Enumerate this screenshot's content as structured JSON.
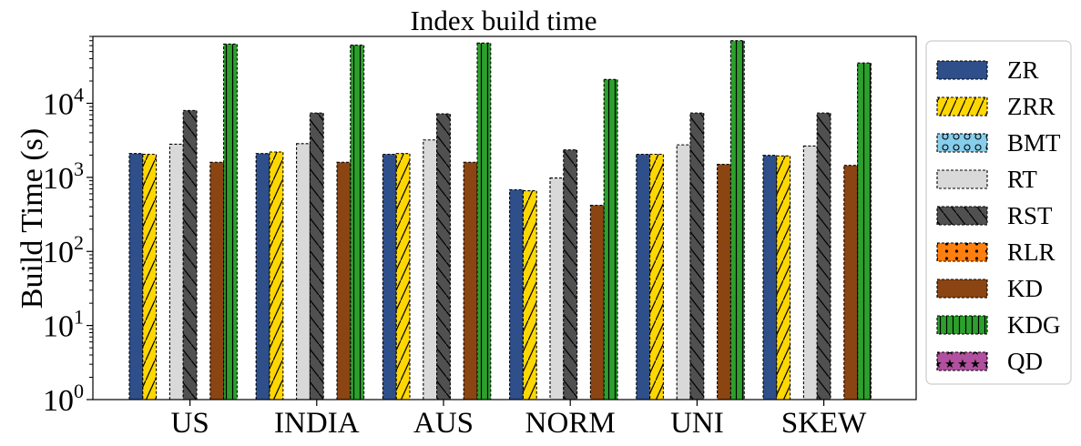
{
  "chart_data": {
    "type": "bar",
    "title": "Index build time",
    "xlabel": "",
    "ylabel": "Build Time (s)",
    "yscale": "log",
    "ylim": [
      1,
      80000
    ],
    "y_tick_labels": [
      "10^0",
      "10^1",
      "10^2",
      "10^3",
      "10^4"
    ],
    "grid": false,
    "legend_position": "outside right",
    "categories": [
      "US",
      "INDIA",
      "AUS",
      "NORM",
      "UNI",
      "SKEW"
    ],
    "series": [
      {
        "name": "ZR",
        "color": "#2f4f8a",
        "hatch": "none",
        "values": [
          2100,
          2100,
          2050,
          680,
          2050,
          1980
        ]
      },
      {
        "name": "ZRR",
        "color": "#ffd700",
        "hatch": "slash",
        "values": [
          2050,
          2200,
          2100,
          660,
          2050,
          1950
        ]
      },
      {
        "name": "BMT",
        "color": "#87ceeb",
        "hatch": "circle",
        "values": [
          null,
          null,
          null,
          null,
          null,
          null
        ]
      },
      {
        "name": "RT",
        "color": "#d9d9d9",
        "hatch": "none",
        "values": [
          2800,
          2850,
          3200,
          980,
          2750,
          2650
        ]
      },
      {
        "name": "RST",
        "color": "#505050",
        "hatch": "backslash",
        "values": [
          8000,
          7400,
          7200,
          2350,
          7400,
          7400
        ]
      },
      {
        "name": "RLR",
        "color": "#ff7f0e",
        "hatch": "dot",
        "values": [
          null,
          null,
          null,
          null,
          null,
          null
        ]
      },
      {
        "name": "KD",
        "color": "#8b4513",
        "hatch": "none",
        "values": [
          1600,
          1600,
          1600,
          420,
          1500,
          1450
        ]
      },
      {
        "name": "KDG",
        "color": "#2ca02c",
        "hatch": "vertical",
        "values": [
          63000,
          61000,
          65000,
          21000,
          70000,
          35000
        ]
      },
      {
        "name": "QD",
        "color": "#b0509e",
        "hatch": "star",
        "values": [
          null,
          null,
          null,
          null,
          null,
          null
        ]
      }
    ]
  }
}
